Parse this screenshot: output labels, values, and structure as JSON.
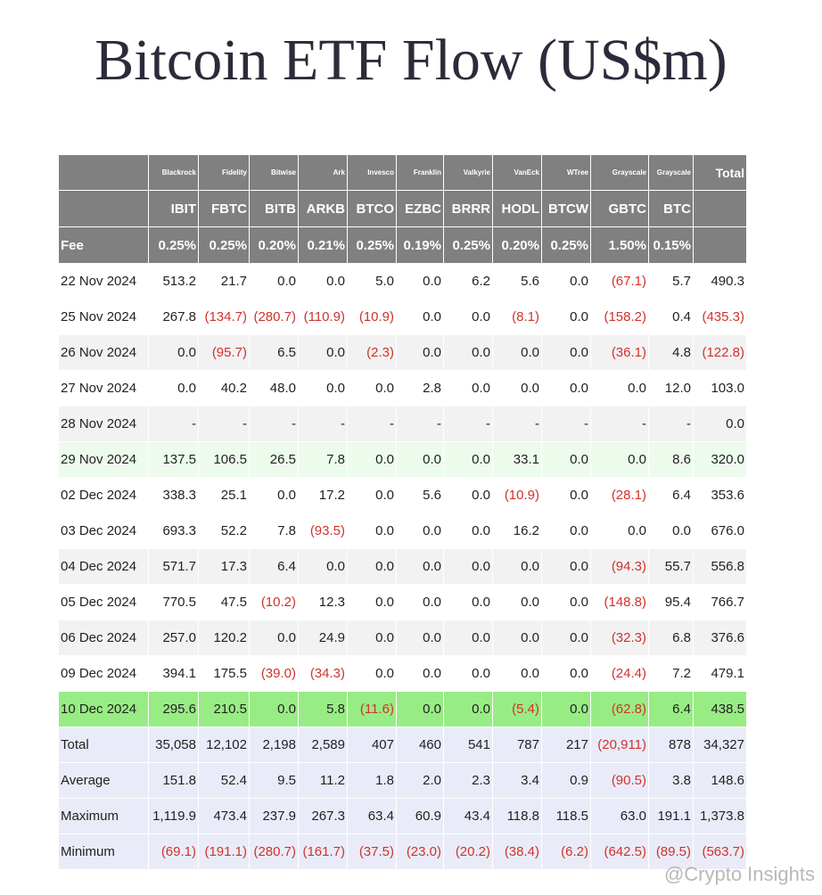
{
  "title": "Bitcoin ETF Flow (US$m)",
  "table": {
    "issuers": [
      "Blackrock",
      "Fidelity",
      "Bitwise",
      "Ark",
      "Invesco",
      "Franklin",
      "Valkyrie",
      "VanEck",
      "WTree",
      "Grayscale",
      "Grayscale"
    ],
    "total_header": "Total",
    "tickers": [
      "IBIT",
      "FBTC",
      "BITB",
      "ARKB",
      "BTCO",
      "EZBC",
      "BRRR",
      "HODL",
      "BTCW",
      "GBTC",
      "BTC"
    ],
    "fee_label": "Fee",
    "fees": [
      "0.25%",
      "0.25%",
      "0.20%",
      "0.21%",
      "0.25%",
      "0.19%",
      "0.25%",
      "0.20%",
      "0.25%",
      "1.50%",
      "0.15%"
    ],
    "rows": [
      [
        "22 Nov 2024",
        "513.2",
        "21.7",
        "0.0",
        "0.0",
        "5.0",
        "0.0",
        "6.2",
        "5.6",
        "0.0",
        "(67.1)",
        "5.7",
        "490.3"
      ],
      [
        "25 Nov 2024",
        "267.8",
        "(134.7)",
        "(280.7)",
        "(110.9)",
        "(10.9)",
        "0.0",
        "0.0",
        "(8.1)",
        "0.0",
        "(158.2)",
        "0.4",
        "(435.3)"
      ],
      [
        "26 Nov 2024",
        "0.0",
        "(95.7)",
        "6.5",
        "0.0",
        "(2.3)",
        "0.0",
        "0.0",
        "0.0",
        "0.0",
        "(36.1)",
        "4.8",
        "(122.8)"
      ],
      [
        "27 Nov 2024",
        "0.0",
        "40.2",
        "48.0",
        "0.0",
        "0.0",
        "2.8",
        "0.0",
        "0.0",
        "0.0",
        "0.0",
        "12.0",
        "103.0"
      ],
      [
        "28 Nov 2024",
        "-",
        "-",
        "-",
        "-",
        "-",
        "-",
        "-",
        "-",
        "-",
        "-",
        "-",
        "0.0"
      ],
      [
        "29 Nov 2024",
        "137.5",
        "106.5",
        "26.5",
        "7.8",
        "0.0",
        "0.0",
        "0.0",
        "33.1",
        "0.0",
        "0.0",
        "8.6",
        "320.0"
      ],
      [
        "02 Dec 2024",
        "338.3",
        "25.1",
        "0.0",
        "17.2",
        "0.0",
        "5.6",
        "0.0",
        "(10.9)",
        "0.0",
        "(28.1)",
        "6.4",
        "353.6"
      ],
      [
        "03 Dec 2024",
        "693.3",
        "52.2",
        "7.8",
        "(93.5)",
        "0.0",
        "0.0",
        "0.0",
        "16.2",
        "0.0",
        "0.0",
        "0.0",
        "676.0"
      ],
      [
        "04 Dec 2024",
        "571.7",
        "17.3",
        "6.4",
        "0.0",
        "0.0",
        "0.0",
        "0.0",
        "0.0",
        "0.0",
        "(94.3)",
        "55.7",
        "556.8"
      ],
      [
        "05 Dec 2024",
        "770.5",
        "47.5",
        "(10.2)",
        "12.3",
        "0.0",
        "0.0",
        "0.0",
        "0.0",
        "0.0",
        "(148.8)",
        "95.4",
        "766.7"
      ],
      [
        "06 Dec 2024",
        "257.0",
        "120.2",
        "0.0",
        "24.9",
        "0.0",
        "0.0",
        "0.0",
        "0.0",
        "0.0",
        "(32.3)",
        "6.8",
        "376.6"
      ],
      [
        "09 Dec 2024",
        "394.1",
        "175.5",
        "(39.0)",
        "(34.3)",
        "0.0",
        "0.0",
        "0.0",
        "0.0",
        "0.0",
        "(24.4)",
        "7.2",
        "479.1"
      ],
      [
        "10 Dec 2024",
        "295.6",
        "210.5",
        "0.0",
        "5.8",
        "(11.6)",
        "0.0",
        "0.0",
        "(5.4)",
        "0.0",
        "(62.8)",
        "6.4",
        "438.5"
      ],
      [
        "Total",
        "35,058",
        "12,102",
        "2,198",
        "2,589",
        "407",
        "460",
        "541",
        "787",
        "217",
        "(20,911)",
        "878",
        "34,327"
      ],
      [
        "Average",
        "151.8",
        "52.4",
        "9.5",
        "11.2",
        "1.8",
        "2.0",
        "2.3",
        "3.4",
        "0.9",
        "(90.5)",
        "3.8",
        "148.6"
      ],
      [
        "Maximum",
        "1,119.9",
        "473.4",
        "237.9",
        "267.3",
        "63.4",
        "60.9",
        "43.4",
        "118.8",
        "118.5",
        "63.0",
        "191.1",
        "1,373.8"
      ],
      [
        "Minimum",
        "(69.1)",
        "(191.1)",
        "(280.7)",
        "(161.7)",
        "(37.5)",
        "(23.0)",
        "(20.2)",
        "(38.4)",
        "(6.2)",
        "(642.5)",
        "(89.5)",
        "(563.7)"
      ]
    ]
  },
  "watermark": "@Crypto Insights"
}
